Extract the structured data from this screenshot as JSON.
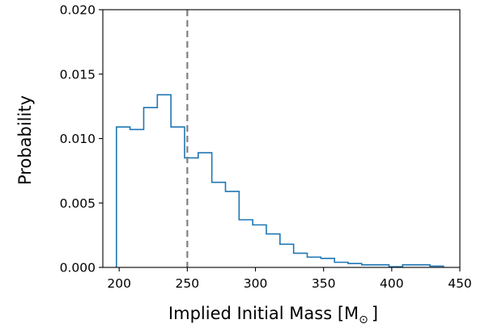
{
  "chart_data": {
    "type": "histogram",
    "title": "",
    "xlabel": "Implied Initial Mass [M",
    "xlabel_subscript": "⊙",
    "xlabel_suffix": "]",
    "ylabel": "Probability",
    "xlim": [
      188,
      450
    ],
    "ylim": [
      0,
      0.02
    ],
    "xticks": [
      200,
      250,
      300,
      350,
      400,
      450
    ],
    "xtick_labels": [
      "200",
      "250",
      "300",
      "350",
      "400",
      "450"
    ],
    "yticks": [
      0,
      0.005,
      0.01,
      0.015,
      0.02
    ],
    "ytick_labels": [
      "0.000",
      "0.005",
      "0.010",
      "0.015",
      "0.020"
    ],
    "grid": false,
    "legend": "none",
    "bin_edges": [
      198,
      208,
      218,
      228,
      238,
      248,
      258,
      268,
      278,
      288,
      298,
      308,
      318,
      328,
      338,
      348,
      358,
      368,
      378,
      388,
      398,
      408,
      418,
      428,
      438
    ],
    "values": [
      0.0109,
      0.0107,
      0.0124,
      0.0134,
      0.0109,
      0.0085,
      0.0089,
      0.0066,
      0.0059,
      0.0037,
      0.0033,
      0.0026,
      0.0018,
      0.0011,
      0.0008,
      0.0007,
      0.0004,
      0.0003,
      0.0002,
      0.0002,
      5e-05,
      0.0002,
      0.0002,
      0.0001
    ],
    "reference_line": {
      "x": 250,
      "style": "dashed",
      "color": "#808080"
    },
    "colors": {
      "series": "#1f77b4",
      "axes": "#000000"
    }
  }
}
